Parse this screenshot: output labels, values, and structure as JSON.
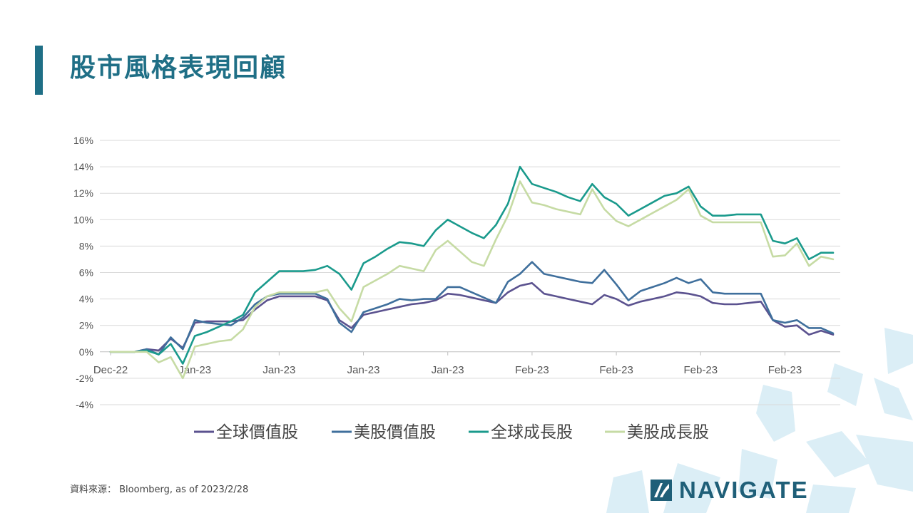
{
  "title": "股市風格表現回顧",
  "source_note": "資料來源： Bloomberg,  as of 2023/2/28",
  "logo_text": "NAVIGATE",
  "colors": {
    "accent": "#1f6f86",
    "global_value": "#5b528f",
    "us_value": "#3f6f9c",
    "global_growth": "#1a9a8c",
    "us_growth": "#c6dba4",
    "grid": "#d9d9d9",
    "deco": "#dbeef6"
  },
  "chart_data": {
    "type": "line",
    "ylim": [
      -4,
      16
    ],
    "yticks": [
      -4,
      -2,
      0,
      2,
      4,
      6,
      8,
      10,
      12,
      14,
      16
    ],
    "ytick_labels": [
      "-4%",
      "-2%",
      "0%",
      "2%",
      "4%",
      "6%",
      "8%",
      "10%",
      "12%",
      "14%",
      "16%"
    ],
    "xtick_labels": [
      "Dec-22",
      "Jan-23",
      "Jan-23",
      "Jan-23",
      "Jan-23",
      "Feb-23",
      "Feb-23",
      "Feb-23",
      "Feb-23"
    ],
    "xtick_index": [
      0,
      7,
      14,
      21,
      28,
      35,
      42,
      49,
      56
    ],
    "grid": true,
    "legend_position": "bottom",
    "n_points": 61,
    "series": [
      {
        "name": "全球價值股",
        "color_key": "global_value",
        "values": [
          0,
          0,
          0,
          0.2,
          0.1,
          1.0,
          0.3,
          2.2,
          2.3,
          2.3,
          2.3,
          2.4,
          3.2,
          3.9,
          4.2,
          4.2,
          4.2,
          4.2,
          3.9,
          2.4,
          1.8,
          2.8,
          3.0,
          3.2,
          3.4,
          3.6,
          3.7,
          3.9,
          4.4,
          4.3,
          4.1,
          3.9,
          3.7,
          4.5,
          5.0,
          5.2,
          4.4,
          4.2,
          4.0,
          3.8,
          3.6,
          4.3,
          4.0,
          3.5,
          3.8,
          4.0,
          4.2,
          4.5,
          4.4,
          4.2,
          3.7,
          3.6,
          3.6,
          3.7,
          3.8,
          2.4,
          1.9,
          2.0,
          1.3,
          1.6,
          1.3
        ]
      },
      {
        "name": "美股價值股",
        "color_key": "us_value",
        "values": [
          0,
          0,
          0,
          0.2,
          -0.2,
          1.1,
          0.2,
          2.4,
          2.2,
          2.1,
          2.0,
          2.6,
          3.6,
          4.2,
          4.4,
          4.4,
          4.4,
          4.4,
          4.0,
          2.2,
          1.5,
          3.0,
          3.3,
          3.6,
          4.0,
          3.9,
          4.0,
          4.0,
          4.9,
          4.9,
          4.5,
          4.1,
          3.7,
          5.3,
          5.9,
          6.8,
          5.9,
          5.7,
          5.5,
          5.3,
          5.2,
          6.2,
          5.1,
          3.9,
          4.6,
          4.9,
          5.2,
          5.6,
          5.2,
          5.5,
          4.5,
          4.4,
          4.4,
          4.4,
          4.4,
          2.4,
          2.2,
          2.4,
          1.8,
          1.8,
          1.4
        ]
      },
      {
        "name": "全球成長股",
        "color_key": "global_growth",
        "values": [
          0,
          0,
          0,
          0.1,
          -0.2,
          0.6,
          -0.9,
          1.2,
          1.5,
          1.9,
          2.3,
          2.8,
          4.5,
          5.3,
          6.1,
          6.1,
          6.1,
          6.2,
          6.5,
          5.9,
          4.7,
          6.7,
          7.2,
          7.8,
          8.3,
          8.2,
          8.0,
          9.2,
          10.0,
          9.5,
          9.0,
          8.6,
          9.6,
          11.2,
          14.0,
          12.7,
          12.4,
          12.1,
          11.7,
          11.4,
          12.7,
          11.7,
          11.2,
          10.3,
          10.8,
          11.3,
          11.8,
          12.0,
          12.5,
          11.0,
          10.3,
          10.3,
          10.4,
          10.4,
          10.4,
          8.4,
          8.2,
          8.6,
          7.0,
          7.5,
          7.5
        ]
      },
      {
        "name": "美股成長股",
        "color_key": "us_growth",
        "values": [
          0,
          0,
          0,
          0.0,
          -0.8,
          -0.4,
          -2.0,
          0.4,
          0.6,
          0.8,
          0.9,
          1.7,
          3.4,
          4.2,
          4.5,
          4.5,
          4.5,
          4.5,
          4.7,
          3.3,
          2.3,
          4.9,
          5.4,
          5.9,
          6.5,
          6.3,
          6.1,
          7.7,
          8.4,
          7.6,
          6.8,
          6.5,
          8.5,
          10.3,
          12.9,
          11.3,
          11.1,
          10.8,
          10.6,
          10.4,
          12.3,
          10.8,
          9.9,
          9.5,
          10.0,
          10.5,
          11.0,
          11.5,
          12.3,
          10.3,
          9.8,
          9.8,
          9.8,
          9.8,
          9.8,
          7.2,
          7.3,
          8.2,
          6.5,
          7.2,
          7.0
        ]
      }
    ]
  }
}
